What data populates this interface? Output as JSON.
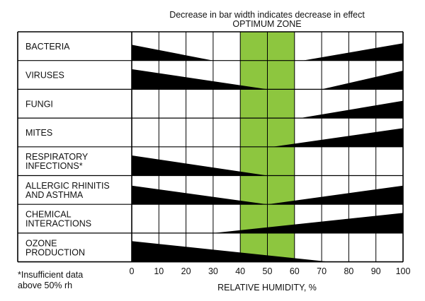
{
  "chart_data": {
    "type": "bar",
    "title": "Decrease in bar width indicates decrease in effect",
    "optimum_zone_label": "OPTIMUM ZONE",
    "xlabel": "RELATIVE HUMIDITY, %",
    "xlim": [
      0,
      100
    ],
    "x_ticks": [
      0,
      10,
      20,
      30,
      40,
      50,
      60,
      70,
      80,
      90,
      100
    ],
    "optimum_zone": [
      40,
      60
    ],
    "grid": true,
    "colors": {
      "optimum_zone": "#8dc63f",
      "bar": "#000000",
      "grid": "#000000"
    },
    "footnote": [
      "*Insufficient data",
      "above 50% rh"
    ],
    "categories": [
      {
        "label": [
          "BACTERIA"
        ],
        "left": {
          "start": 0,
          "end": 30,
          "width": 0.55
        },
        "right": {
          "start": 63,
          "end": 100,
          "width": 0.6
        }
      },
      {
        "label": [
          "VIRUSES"
        ],
        "left": {
          "start": 0,
          "end": 50,
          "width": 0.7
        },
        "right": {
          "start": 70,
          "end": 100,
          "width": 0.65
        }
      },
      {
        "label": [
          "FUNGI"
        ],
        "left": null,
        "right": {
          "start": 62,
          "end": 100,
          "width": 0.6
        }
      },
      {
        "label": [
          "MITES"
        ],
        "left": null,
        "right": {
          "start": 52,
          "end": 100,
          "width": 0.65
        }
      },
      {
        "label": [
          "RESPIRATORY",
          "INFECTIONS*"
        ],
        "left": {
          "start": 0,
          "end": 50,
          "width": 0.7
        },
        "right": null
      },
      {
        "label": [
          "ALLERGIC RHINITIS",
          "AND ASTHMA"
        ],
        "left": {
          "start": 0,
          "end": 50,
          "width": 0.65
        },
        "right": {
          "start": 50,
          "end": 100,
          "width": 0.65
        }
      },
      {
        "label": [
          "CHEMICAL",
          "INTERACTIONS"
        ],
        "left": null,
        "right": {
          "start": 30,
          "end": 100,
          "width": 0.7
        }
      },
      {
        "label": [
          "OZONE",
          "PRODUCTION"
        ],
        "left": {
          "start": 0,
          "end": 73,
          "width": 0.72
        },
        "right": null
      }
    ]
  }
}
